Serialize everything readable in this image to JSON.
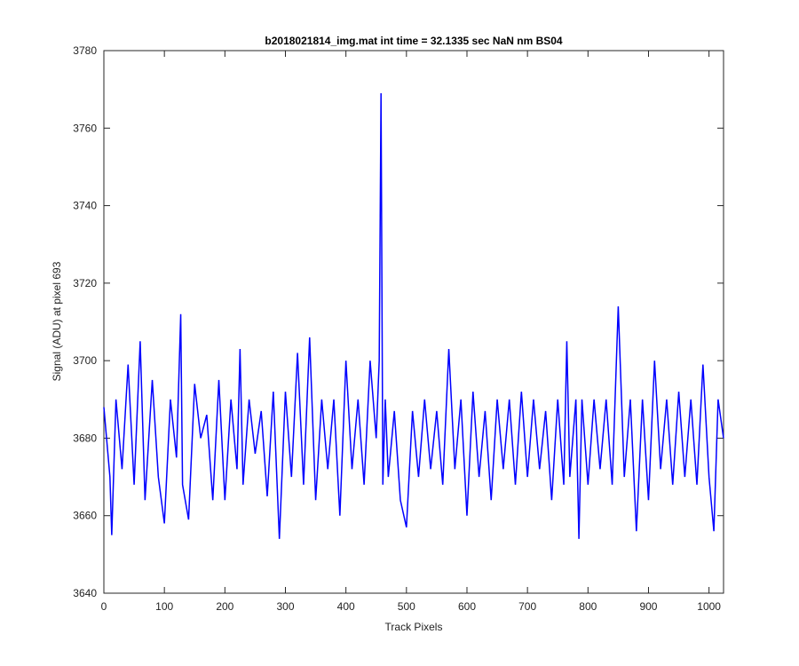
{
  "chart_data": {
    "type": "line",
    "title": "b2018021814_img.mat int time = 32.1335 sec  NaN nm BS04",
    "xlabel": "Track Pixels",
    "ylabel": "Signal (ADU) at pixel 693",
    "xlim": [
      0,
      1024
    ],
    "ylim": [
      3640,
      3780
    ],
    "xticks": [
      0,
      100,
      200,
      300,
      400,
      500,
      600,
      700,
      800,
      900,
      1000
    ],
    "yticks": [
      3640,
      3660,
      3680,
      3700,
      3720,
      3740,
      3760,
      3780
    ],
    "grid": false,
    "line_color": "#0000ff",
    "series": [
      {
        "x": [
          0,
          10,
          13,
          20,
          30,
          40,
          50,
          60,
          68,
          80,
          90,
          100,
          110,
          120,
          127,
          130,
          140,
          150,
          160,
          170,
          180,
          190,
          200,
          210,
          220,
          225,
          230,
          240,
          250,
          260,
          270,
          280,
          290,
          300,
          310,
          320,
          330,
          340,
          350,
          360,
          370,
          380,
          390,
          400,
          410,
          420,
          430,
          440,
          450,
          455,
          458,
          461,
          465,
          470,
          480,
          490,
          500,
          510,
          520,
          530,
          540,
          550,
          560,
          570,
          580,
          590,
          600,
          610,
          620,
          630,
          640,
          650,
          660,
          670,
          680,
          690,
          700,
          710,
          720,
          730,
          740,
          750,
          760,
          765,
          770,
          780,
          785,
          790,
          800,
          810,
          820,
          830,
          840,
          850,
          860,
          870,
          880,
          890,
          900,
          910,
          920,
          930,
          940,
          950,
          960,
          970,
          980,
          990,
          1000,
          1008,
          1015,
          1024
        ],
        "y": [
          3688,
          3670,
          3655,
          3690,
          3672,
          3699,
          3668,
          3705,
          3664,
          3695,
          3670,
          3658,
          3690,
          3675,
          3712,
          3668,
          3659,
          3694,
          3680,
          3686,
          3664,
          3695,
          3664,
          3690,
          3672,
          3703,
          3668,
          3690,
          3676,
          3687,
          3665,
          3692,
          3654,
          3692,
          3670,
          3702,
          3668,
          3706,
          3664,
          3690,
          3672,
          3690,
          3660,
          3700,
          3672,
          3690,
          3668,
          3700,
          3680,
          3700,
          3769,
          3668,
          3690,
          3670,
          3687,
          3664,
          3657,
          3687,
          3670,
          3690,
          3672,
          3687,
          3668,
          3703,
          3672,
          3690,
          3660,
          3692,
          3670,
          3687,
          3664,
          3690,
          3672,
          3690,
          3668,
          3692,
          3670,
          3690,
          3672,
          3687,
          3664,
          3690,
          3668,
          3705,
          3670,
          3690,
          3654,
          3690,
          3668,
          3690,
          3672,
          3690,
          3668,
          3714,
          3670,
          3690,
          3656,
          3690,
          3664,
          3700,
          3672,
          3690,
          3668,
          3692,
          3670,
          3690,
          3668,
          3699,
          3670,
          3656,
          3690,
          3680
        ]
      }
    ]
  }
}
